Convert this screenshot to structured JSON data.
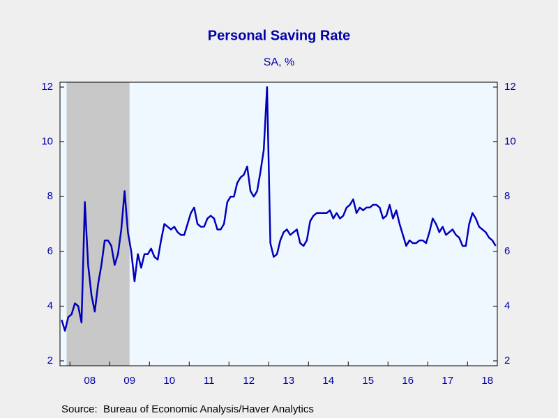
{
  "chart_data": {
    "type": "line",
    "title": "Personal Saving Rate",
    "subtitle": "SA, %",
    "source": "Source:  Bureau of Economic Analysis/Haver Analytics",
    "categories": [
      null,
      null,
      null,
      null,
      null,
      null,
      null,
      null,
      null,
      "08",
      null,
      null,
      null,
      null,
      null,
      null,
      null,
      null,
      null,
      null,
      null,
      "09",
      null,
      null,
      null,
      null,
      null,
      null,
      null,
      null,
      null,
      null,
      null,
      "10",
      null,
      null,
      null,
      null,
      null,
      null,
      null,
      null,
      null,
      null,
      null,
      "11",
      null,
      null,
      null,
      null,
      null,
      null,
      null,
      null,
      null,
      null,
      null,
      "12",
      null,
      null,
      null,
      null,
      null,
      null,
      null,
      null,
      null,
      null,
      null,
      "13",
      null,
      null,
      null,
      null,
      null,
      null,
      null,
      null,
      null,
      null,
      null,
      "14",
      null,
      null,
      null,
      null,
      null,
      null,
      null,
      null,
      null,
      null,
      null,
      "15",
      null,
      null,
      null,
      null,
      null,
      null,
      null,
      null,
      null,
      null,
      null,
      "16",
      null,
      null,
      null,
      null,
      null,
      null,
      null,
      null,
      null,
      null,
      null,
      "17",
      null,
      null,
      null,
      null,
      null,
      null,
      null,
      null,
      null,
      null,
      null,
      "18",
      null,
      null
    ],
    "series": [
      {
        "name": "Personal Saving Rate",
        "color": "#0000bb",
        "values": [
          3.5,
          3.1,
          3.6,
          3.7,
          4.1,
          4.0,
          3.4,
          7.8,
          5.5,
          4.4,
          3.8,
          4.8,
          5.5,
          6.4,
          6.4,
          6.2,
          5.5,
          5.9,
          6.8,
          8.2,
          6.7,
          6.0,
          4.9,
          5.9,
          5.4,
          5.9,
          5.9,
          6.1,
          5.8,
          5.7,
          6.4,
          7.0,
          6.9,
          6.8,
          6.9,
          6.7,
          6.6,
          6.6,
          7.0,
          7.4,
          7.6,
          7.0,
          6.9,
          6.9,
          7.2,
          7.3,
          7.2,
          6.8,
          6.8,
          7.0,
          7.8,
          8.0,
          8.0,
          8.5,
          8.7,
          8.8,
          9.1,
          8.2,
          8.0,
          8.2,
          8.9,
          9.7,
          12.0,
          6.3,
          5.8,
          5.9,
          6.4,
          6.7,
          6.8,
          6.6,
          6.7,
          6.8,
          6.3,
          6.2,
          6.4,
          7.1,
          7.3,
          7.4,
          7.4,
          7.4,
          7.4,
          7.5,
          7.2,
          7.4,
          7.2,
          7.3,
          7.6,
          7.7,
          7.9,
          7.4,
          7.6,
          7.5,
          7.6,
          7.6,
          7.7,
          7.7,
          7.6,
          7.2,
          7.3,
          7.7,
          7.2,
          7.5,
          7.0,
          6.6,
          6.2,
          6.4,
          6.3,
          6.3,
          6.4,
          6.4,
          6.3,
          6.7,
          7.2,
          7.0,
          6.7,
          6.9,
          6.6,
          6.7,
          6.8,
          6.6,
          6.5,
          6.2,
          6.2,
          7.0,
          7.4,
          7.2,
          6.9,
          6.8,
          6.7,
          6.5,
          6.4,
          6.2
        ]
      }
    ],
    "recession": [
      2,
      21
    ],
    "ylim": [
      2,
      12
    ],
    "yticks": [
      2,
      4,
      6,
      8,
      10,
      12
    ],
    "grid": false
  }
}
